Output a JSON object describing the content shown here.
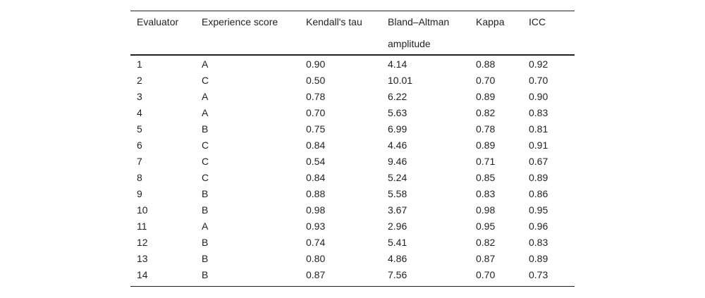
{
  "table": {
    "header": [
      "Evaluator",
      "Experience score",
      "Kendall's tau",
      "Bland–Altman amplitude",
      "Kappa",
      "ICC"
    ],
    "rows": [
      [
        "1",
        "A",
        "0.90",
        "4.14",
        "0.88",
        "0.92"
      ],
      [
        "2",
        "C",
        "0.50",
        "10.01",
        "0.70",
        "0.70"
      ],
      [
        "3",
        "A",
        "0.78",
        "6.22",
        "0.89",
        "0.90"
      ],
      [
        "4",
        "A",
        "0.70",
        "5.63",
        "0.82",
        "0.83"
      ],
      [
        "5",
        "B",
        "0.75",
        "6.99",
        "0.78",
        "0.81"
      ],
      [
        "6",
        "C",
        "0.84",
        "4.46",
        "0.89",
        "0.91"
      ],
      [
        "7",
        "C",
        "0.54",
        "9.46",
        "0.71",
        "0.67"
      ],
      [
        "8",
        "C",
        "0.84",
        "5.24",
        "0.85",
        "0.89"
      ],
      [
        "9",
        "B",
        "0.88",
        "5.58",
        "0.83",
        "0.86"
      ],
      [
        "10",
        "B",
        "0.98",
        "3.67",
        "0.98",
        "0.95"
      ],
      [
        "11",
        "A",
        "0.93",
        "2.96",
        "0.95",
        "0.96"
      ],
      [
        "12",
        "B",
        "0.74",
        "5.41",
        "0.82",
        "0.83"
      ],
      [
        "13",
        "B",
        "0.80",
        "4.86",
        "0.87",
        "0.89"
      ],
      [
        "14",
        "B",
        "0.87",
        "7.56",
        "0.70",
        "0.73"
      ]
    ]
  }
}
